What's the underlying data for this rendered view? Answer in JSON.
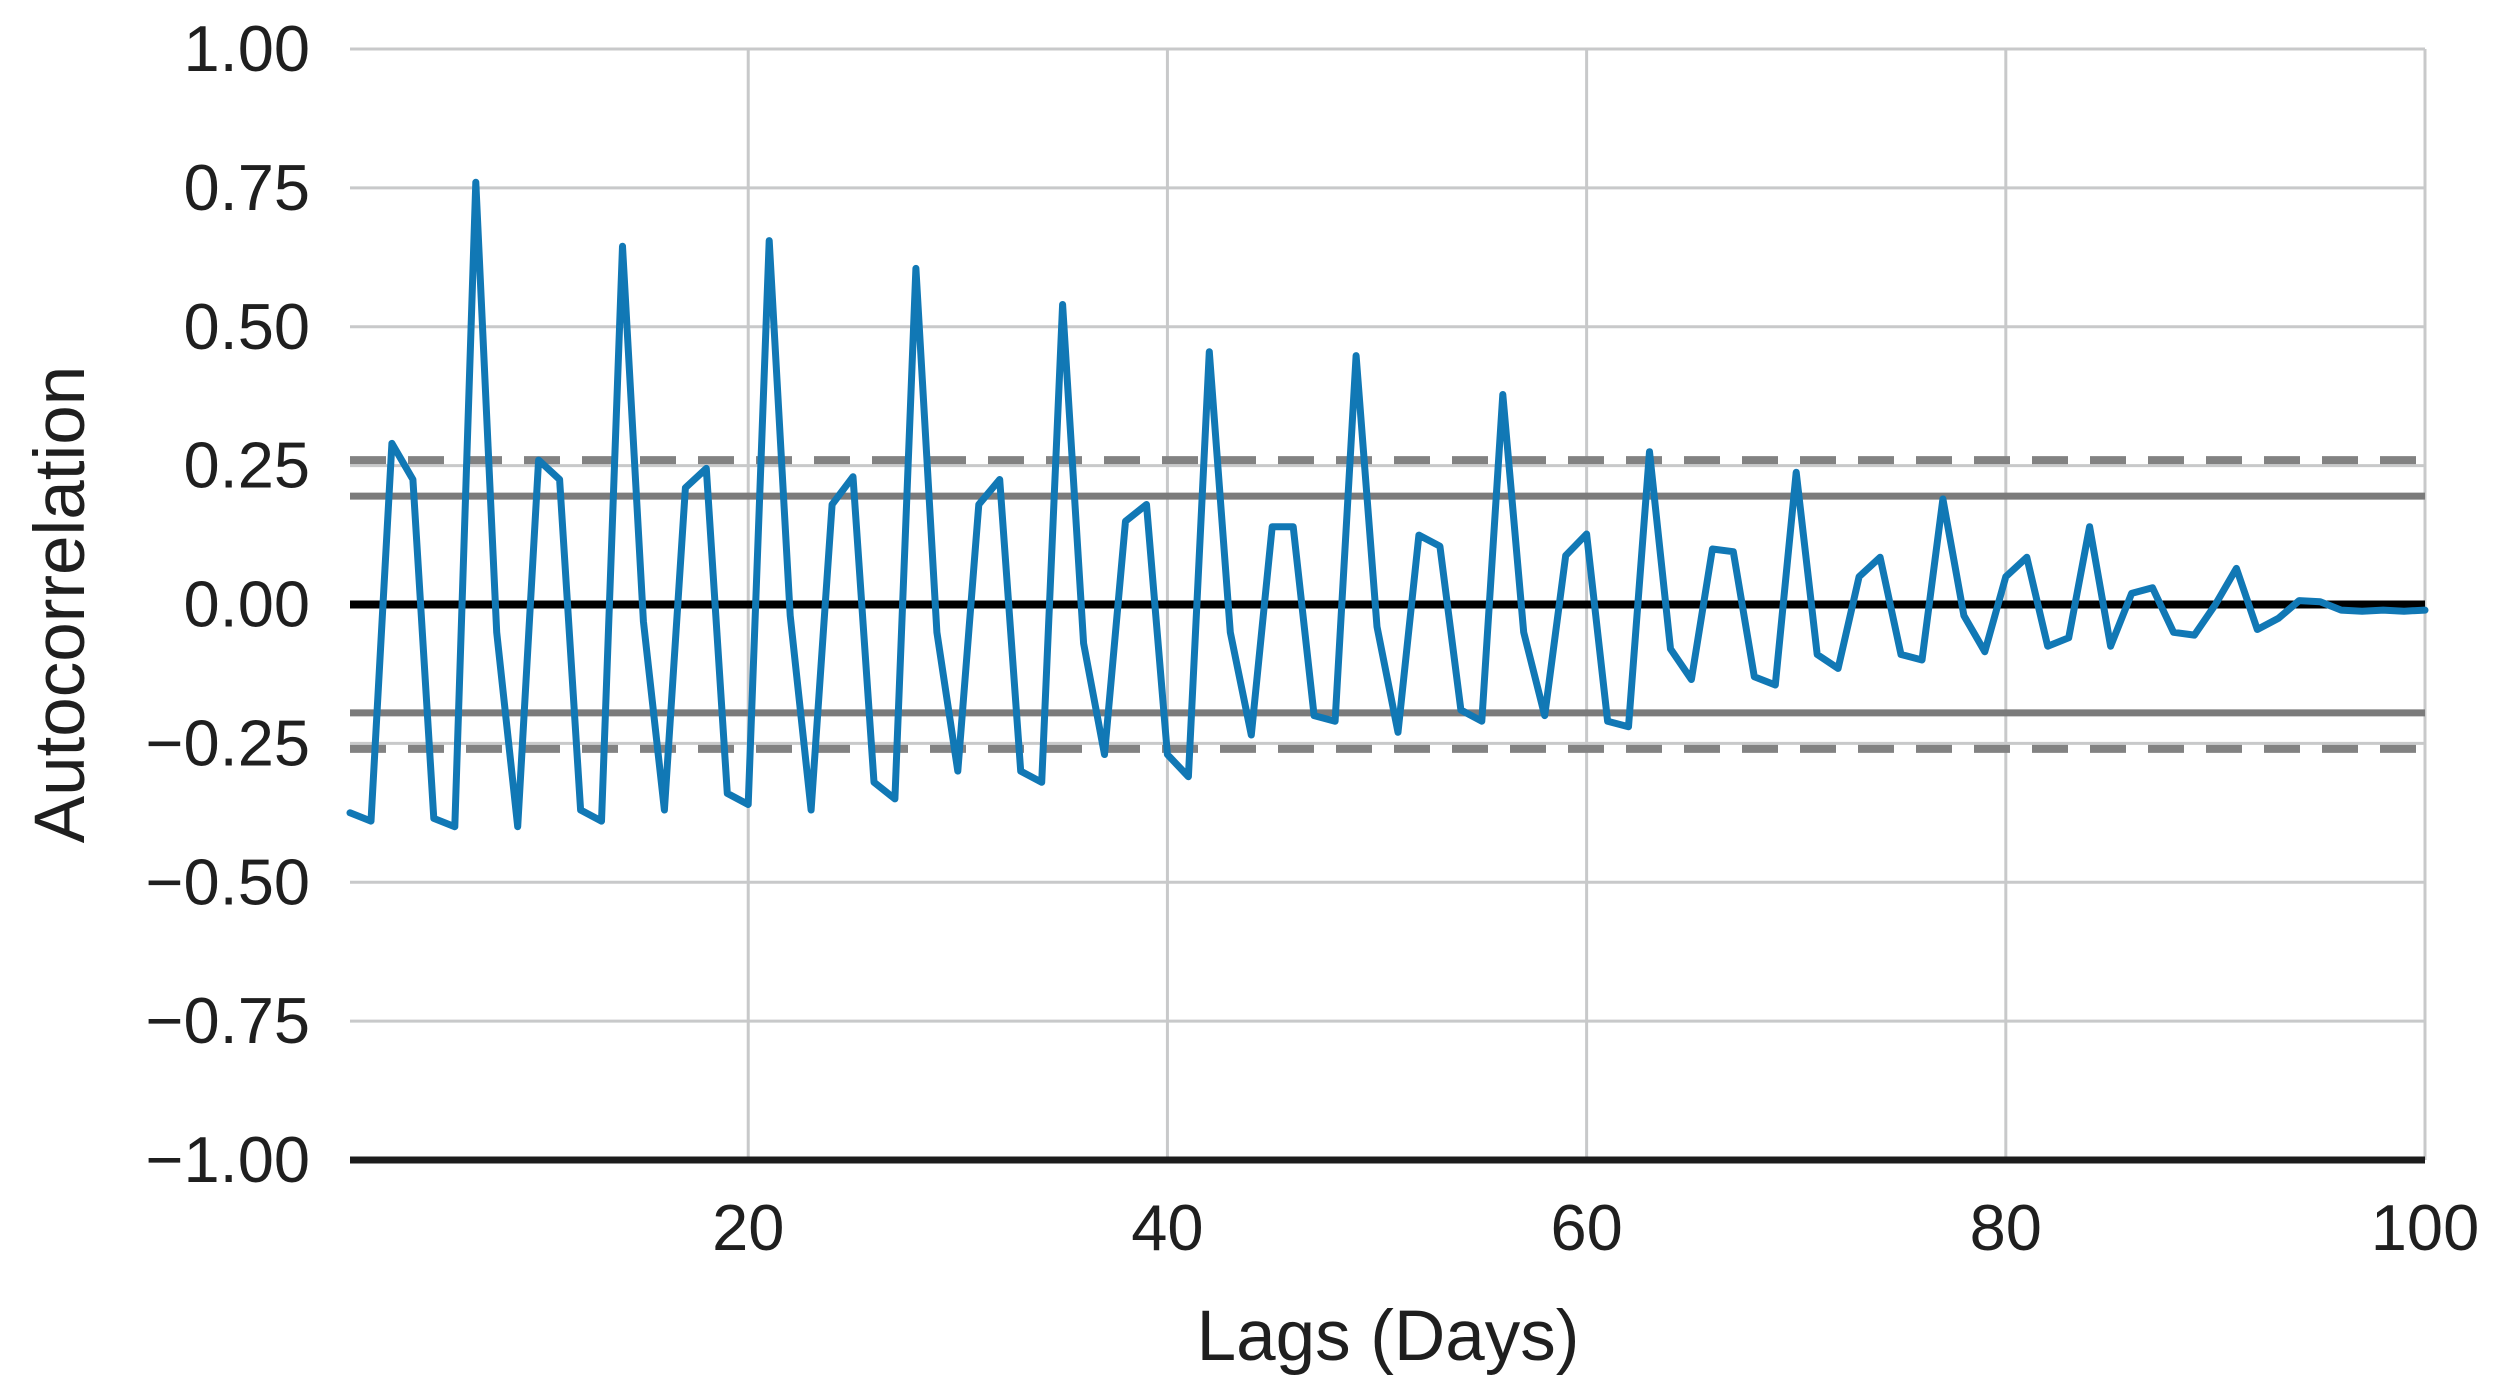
{
  "figure": {
    "type_hint": "autocorrelation-plot",
    "background": "#ffffff"
  },
  "chart_data": {
    "type": "line",
    "title": "",
    "xlabel": "Lags (Days)",
    "ylabel": "Autocorrelation",
    "x": {
      "start": 1,
      "step": 1,
      "count": 100
    },
    "values": [
      -0.375,
      -0.39,
      0.29,
      0.225,
      -0.385,
      -0.4,
      0.76,
      -0.05,
      -0.4,
      0.26,
      0.225,
      -0.37,
      -0.39,
      0.645,
      -0.03,
      -0.37,
      0.21,
      0.245,
      -0.34,
      -0.36,
      0.655,
      -0.02,
      -0.37,
      0.18,
      0.23,
      -0.32,
      -0.35,
      0.605,
      -0.05,
      -0.3,
      0.18,
      0.225,
      -0.3,
      -0.32,
      0.54,
      -0.07,
      -0.27,
      0.15,
      0.18,
      -0.27,
      -0.31,
      0.455,
      -0.05,
      -0.235,
      0.14,
      0.14,
      -0.2,
      -0.21,
      0.448,
      -0.04,
      -0.23,
      0.125,
      0.105,
      -0.19,
      -0.21,
      0.378,
      -0.05,
      -0.2,
      0.088,
      0.127,
      -0.21,
      -0.22,
      0.275,
      -0.08,
      -0.135,
      0.1,
      0.095,
      -0.13,
      -0.145,
      0.238,
      -0.09,
      -0.115,
      0.05,
      0.085,
      -0.09,
      -0.1,
      0.19,
      -0.02,
      -0.085,
      0.05,
      0.085,
      -0.075,
      -0.06,
      0.14,
      -0.075,
      0.02,
      0.03,
      -0.05,
      -0.055,
      0.0,
      0.065,
      -0.045,
      -0.025,
      0.007,
      0.005,
      -0.01,
      -0.012,
      -0.01,
      -0.012,
      -0.01
    ],
    "xlim": [
      1,
      100
    ],
    "ylim": [
      -1.0,
      1.0
    ],
    "x_ticks": [
      20,
      40,
      60,
      80,
      100
    ],
    "x_tick_labels": [
      "20",
      "40",
      "60",
      "80",
      "100"
    ],
    "y_ticks": [
      1.0,
      0.75,
      0.5,
      0.25,
      0.0,
      -0.25,
      -0.5,
      -0.75,
      -1.0
    ],
    "y_tick_labels": [
      "1.00",
      "0.75",
      "0.50",
      "0.25",
      "0.00",
      "−0.25",
      "−0.50",
      "−0.75",
      "−1.00"
    ],
    "y_gridline_values": [
      1.0,
      0.75,
      0.5,
      0.25,
      -0.25,
      -0.5,
      -0.75
    ],
    "reference_lines": {
      "zero_line": 0.0,
      "confidence_solid": [
        0.195,
        -0.195
      ],
      "confidence_dashed": [
        0.26,
        -0.26
      ]
    },
    "grid": true,
    "legend": "none",
    "colors": {
      "series_line": "#1178b5",
      "gridline": "#c8c9ca",
      "confidence_solid": "#7b7b7b",
      "confidence_dashed": "#828282",
      "zero_line": "#000000",
      "bottom_axis": "#1c1c1c",
      "text": "#1f1f1f"
    }
  }
}
